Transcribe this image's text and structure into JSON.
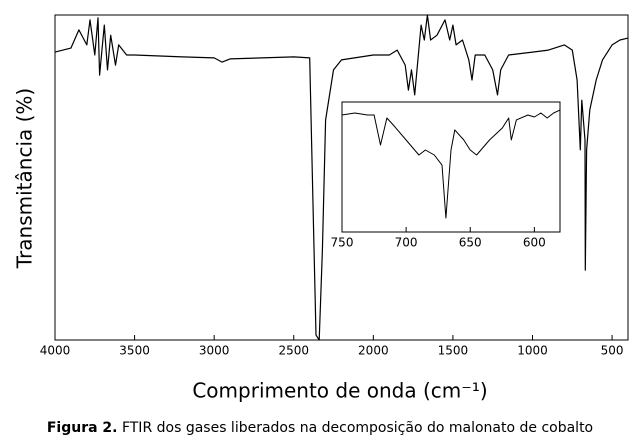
{
  "chart_data": [
    {
      "type": "line",
      "xlabel": "Comprimento de onda (cm⁻¹)",
      "ylabel": "Transmitância (%)",
      "xlim": [
        4000,
        400
      ],
      "ylim": [
        0,
        100
      ],
      "xticks": [
        4000,
        3500,
        3000,
        2500,
        2000,
        1500,
        1000,
        500
      ],
      "series": [
        {
          "color": "#000000",
          "x": [
            4000,
            3900,
            3850,
            3800,
            3780,
            3750,
            3730,
            3720,
            3690,
            3670,
            3650,
            3620,
            3600,
            3550,
            3500,
            3200,
            3000,
            2950,
            2900,
            2500,
            2400,
            2380,
            2360,
            2340,
            2320,
            2300,
            2250,
            2200,
            2000,
            1900,
            1850,
            1800,
            1780,
            1760,
            1740,
            1720,
            1700,
            1680,
            1660,
            1640,
            1600,
            1550,
            1520,
            1500,
            1480,
            1440,
            1400,
            1380,
            1360,
            1300,
            1250,
            1220,
            1200,
            1150,
            1000,
            900,
            800,
            750,
            720,
            700,
            690,
            670,
            668,
            660,
            640,
            600,
            560,
            500,
            450,
            400
          ],
          "values": [
            88.6,
            89.8,
            95.4,
            90.8,
            98.5,
            87.7,
            99.1,
            81.5,
            96.9,
            83.1,
            93.8,
            84.6,
            90.8,
            87.7,
            87.7,
            87.1,
            86.8,
            85.5,
            86.5,
            87.1,
            86.8,
            43.1,
            1.5,
            0,
            27.7,
            67.7,
            83.1,
            86.2,
            87.7,
            87.7,
            89.2,
            84.6,
            76.9,
            83.1,
            75.4,
            86.2,
            96.9,
            92.3,
            100,
            92.3,
            93.8,
            98.5,
            92.3,
            96.9,
            90.8,
            92.3,
            86.2,
            80,
            87.7,
            87.7,
            83.1,
            75.4,
            83.1,
            87.7,
            88.6,
            89.2,
            90.8,
            89.2,
            80,
            58.5,
            73.8,
            61.5,
            21.5,
            58.5,
            70.8,
            80,
            86.2,
            90.8,
            92.3,
            92.9
          ]
        }
      ]
    },
    {
      "type": "line",
      "xlim": [
        750,
        580
      ],
      "ylim": [
        0,
        100
      ],
      "xticks": [
        750,
        700,
        650,
        600
      ],
      "series": [
        {
          "color": "#000000",
          "x": [
            750,
            740,
            730,
            725,
            720,
            715,
            710,
            700,
            690,
            685,
            678,
            672,
            669,
            665,
            662,
            655,
            650,
            645,
            635,
            625,
            620,
            618,
            614,
            605,
            600,
            595,
            590,
            585,
            580
          ],
          "values": [
            90,
            91.5,
            90,
            90,
            66.9,
            87.7,
            82.3,
            70.8,
            59.2,
            63.1,
            59.2,
            51.5,
            10.8,
            63.1,
            78.5,
            70.8,
            63.1,
            59.2,
            70.8,
            80,
            87.7,
            70.8,
            86.2,
            90,
            88.5,
            91.5,
            87.7,
            91.5,
            93.8
          ]
        }
      ]
    }
  ],
  "caption": {
    "label": "Figura 2.",
    "text": "FTIR dos gases liberados na decomposição do malonato de cobalto"
  }
}
